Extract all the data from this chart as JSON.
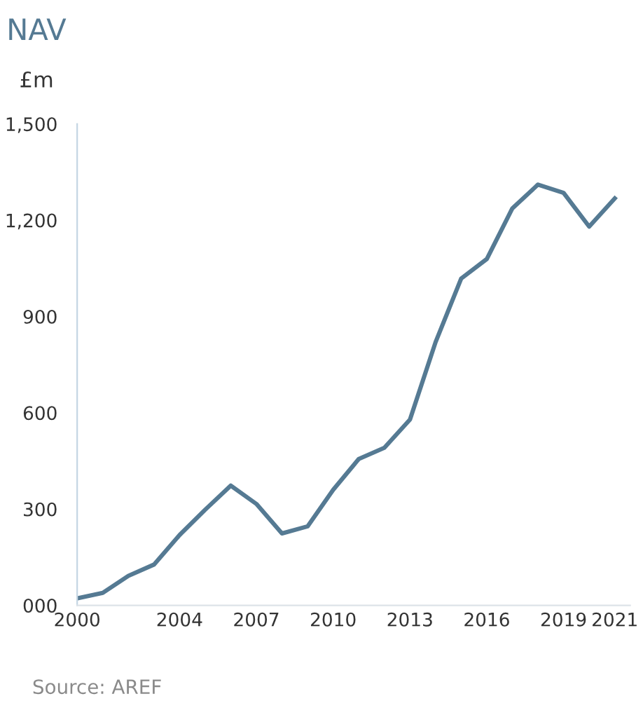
{
  "chart_data": {
    "type": "line",
    "title": "NAV",
    "ylabel": "£m",
    "x": [
      2000,
      2001,
      2002,
      2003,
      2004,
      2005,
      2006,
      2007,
      2008,
      2009,
      2010,
      2011,
      2012,
      2013,
      2014,
      2015,
      2016,
      2017,
      2018,
      2019,
      2020,
      2021
    ],
    "series": [
      {
        "color": "#557a93",
        "values": [
          22,
          39,
          92,
          127,
          219,
          298,
          373,
          316,
          224,
          246,
          360,
          456,
          491,
          579,
          820,
          1018,
          1079,
          1237,
          1311,
          1285,
          1180,
          1268
        ]
      }
    ],
    "xlim": [
      2000,
      2021.6
    ],
    "xticks": [
      2000,
      2004,
      2007,
      2010,
      2013,
      2016,
      2019,
      2021
    ],
    "ylim": [
      0,
      1500
    ],
    "yticks": [
      {
        "value": 0,
        "label": "000"
      },
      300,
      600,
      900,
      {
        "value": 1200,
        "label": "1,200"
      },
      {
        "value": 1500,
        "label": "1,500"
      }
    ],
    "grid": false,
    "legend": false,
    "marker": "none",
    "line_style": "solid",
    "annotations": [
      "Source: AREF"
    ]
  }
}
